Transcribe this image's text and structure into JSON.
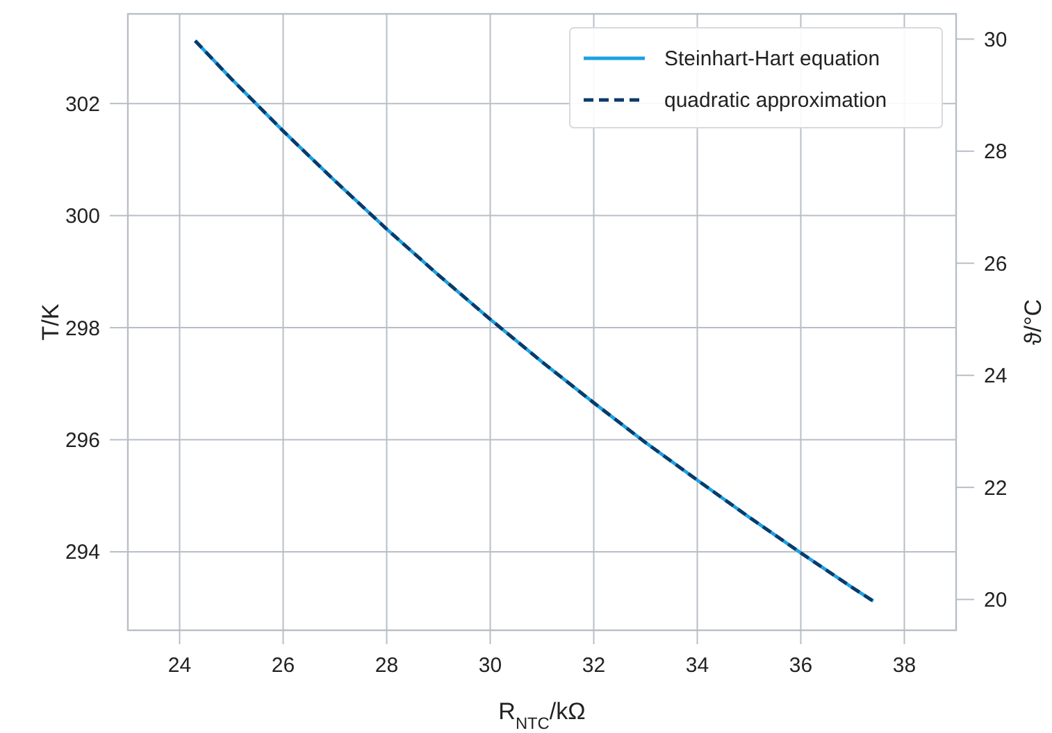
{
  "chart_data": {
    "type": "line",
    "xlabel": "R$_{NTC}$/kΩ",
    "ylabel": "T/K",
    "y2label": "ϑ/°C",
    "x": [
      24.3,
      25,
      26,
      27,
      28,
      29,
      30,
      31,
      32,
      33,
      34,
      35,
      36,
      37,
      37.4
    ],
    "series": [
      {
        "name": "Steinhart-Hart equation",
        "color": "#1ba1e2",
        "line_style": "solid",
        "values": [
          303.12,
          302.44,
          301.51,
          300.62,
          299.76,
          298.94,
          298.15,
          297.39,
          296.66,
          295.95,
          295.28,
          294.62,
          293.98,
          293.36,
          293.12
        ]
      },
      {
        "name": "quadratic approximation",
        "color": "#0b3a68",
        "line_style": "dashed",
        "values": [
          303.12,
          302.44,
          301.51,
          300.62,
          299.76,
          298.94,
          298.15,
          297.39,
          296.66,
          295.95,
          295.28,
          294.62,
          293.98,
          293.36,
          293.12
        ]
      }
    ],
    "xlim": [
      23,
      39
    ],
    "xticks": [
      24,
      26,
      28,
      30,
      32,
      34,
      36,
      38
    ],
    "ylim": [
      292.6,
      303.6
    ],
    "yticks": [
      294,
      296,
      298,
      300,
      302
    ],
    "y2lim": [
      19.45,
      30.45
    ],
    "y2ticks": [
      20,
      22,
      24,
      26,
      28,
      30
    ],
    "grid": true,
    "legend": "top right",
    "marker": "none"
  }
}
